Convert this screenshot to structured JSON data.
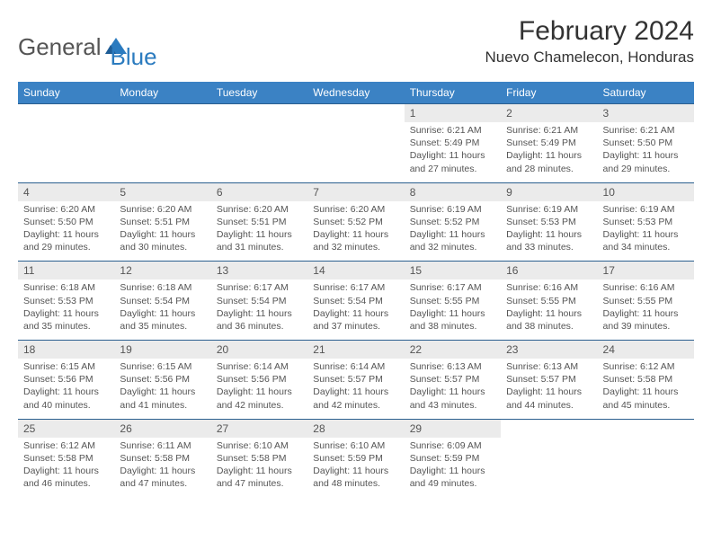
{
  "logo": {
    "general": "General",
    "blue": "Blue"
  },
  "header": {
    "month": "February 2024",
    "location": "Nuevo Chamelecon, Honduras"
  },
  "colors": {
    "header_bg": "#3b82c4",
    "header_text": "#ffffff",
    "daynum_bg": "#ebebeb",
    "border": "#2b5f8f",
    "text": "#555555",
    "logo_blue": "#2b7bbf"
  },
  "weekdays": [
    "Sunday",
    "Monday",
    "Tuesday",
    "Wednesday",
    "Thursday",
    "Friday",
    "Saturday"
  ],
  "weeks": [
    [
      null,
      null,
      null,
      null,
      {
        "n": "1",
        "sr": "Sunrise: 6:21 AM",
        "ss": "Sunset: 5:49 PM",
        "dl": "Daylight: 11 hours and 27 minutes."
      },
      {
        "n": "2",
        "sr": "Sunrise: 6:21 AM",
        "ss": "Sunset: 5:49 PM",
        "dl": "Daylight: 11 hours and 28 minutes."
      },
      {
        "n": "3",
        "sr": "Sunrise: 6:21 AM",
        "ss": "Sunset: 5:50 PM",
        "dl": "Daylight: 11 hours and 29 minutes."
      }
    ],
    [
      {
        "n": "4",
        "sr": "Sunrise: 6:20 AM",
        "ss": "Sunset: 5:50 PM",
        "dl": "Daylight: 11 hours and 29 minutes."
      },
      {
        "n": "5",
        "sr": "Sunrise: 6:20 AM",
        "ss": "Sunset: 5:51 PM",
        "dl": "Daylight: 11 hours and 30 minutes."
      },
      {
        "n": "6",
        "sr": "Sunrise: 6:20 AM",
        "ss": "Sunset: 5:51 PM",
        "dl": "Daylight: 11 hours and 31 minutes."
      },
      {
        "n": "7",
        "sr": "Sunrise: 6:20 AM",
        "ss": "Sunset: 5:52 PM",
        "dl": "Daylight: 11 hours and 32 minutes."
      },
      {
        "n": "8",
        "sr": "Sunrise: 6:19 AM",
        "ss": "Sunset: 5:52 PM",
        "dl": "Daylight: 11 hours and 32 minutes."
      },
      {
        "n": "9",
        "sr": "Sunrise: 6:19 AM",
        "ss": "Sunset: 5:53 PM",
        "dl": "Daylight: 11 hours and 33 minutes."
      },
      {
        "n": "10",
        "sr": "Sunrise: 6:19 AM",
        "ss": "Sunset: 5:53 PM",
        "dl": "Daylight: 11 hours and 34 minutes."
      }
    ],
    [
      {
        "n": "11",
        "sr": "Sunrise: 6:18 AM",
        "ss": "Sunset: 5:53 PM",
        "dl": "Daylight: 11 hours and 35 minutes."
      },
      {
        "n": "12",
        "sr": "Sunrise: 6:18 AM",
        "ss": "Sunset: 5:54 PM",
        "dl": "Daylight: 11 hours and 35 minutes."
      },
      {
        "n": "13",
        "sr": "Sunrise: 6:17 AM",
        "ss": "Sunset: 5:54 PM",
        "dl": "Daylight: 11 hours and 36 minutes."
      },
      {
        "n": "14",
        "sr": "Sunrise: 6:17 AM",
        "ss": "Sunset: 5:54 PM",
        "dl": "Daylight: 11 hours and 37 minutes."
      },
      {
        "n": "15",
        "sr": "Sunrise: 6:17 AM",
        "ss": "Sunset: 5:55 PM",
        "dl": "Daylight: 11 hours and 38 minutes."
      },
      {
        "n": "16",
        "sr": "Sunrise: 6:16 AM",
        "ss": "Sunset: 5:55 PM",
        "dl": "Daylight: 11 hours and 38 minutes."
      },
      {
        "n": "17",
        "sr": "Sunrise: 6:16 AM",
        "ss": "Sunset: 5:55 PM",
        "dl": "Daylight: 11 hours and 39 minutes."
      }
    ],
    [
      {
        "n": "18",
        "sr": "Sunrise: 6:15 AM",
        "ss": "Sunset: 5:56 PM",
        "dl": "Daylight: 11 hours and 40 minutes."
      },
      {
        "n": "19",
        "sr": "Sunrise: 6:15 AM",
        "ss": "Sunset: 5:56 PM",
        "dl": "Daylight: 11 hours and 41 minutes."
      },
      {
        "n": "20",
        "sr": "Sunrise: 6:14 AM",
        "ss": "Sunset: 5:56 PM",
        "dl": "Daylight: 11 hours and 42 minutes."
      },
      {
        "n": "21",
        "sr": "Sunrise: 6:14 AM",
        "ss": "Sunset: 5:57 PM",
        "dl": "Daylight: 11 hours and 42 minutes."
      },
      {
        "n": "22",
        "sr": "Sunrise: 6:13 AM",
        "ss": "Sunset: 5:57 PM",
        "dl": "Daylight: 11 hours and 43 minutes."
      },
      {
        "n": "23",
        "sr": "Sunrise: 6:13 AM",
        "ss": "Sunset: 5:57 PM",
        "dl": "Daylight: 11 hours and 44 minutes."
      },
      {
        "n": "24",
        "sr": "Sunrise: 6:12 AM",
        "ss": "Sunset: 5:58 PM",
        "dl": "Daylight: 11 hours and 45 minutes."
      }
    ],
    [
      {
        "n": "25",
        "sr": "Sunrise: 6:12 AM",
        "ss": "Sunset: 5:58 PM",
        "dl": "Daylight: 11 hours and 46 minutes."
      },
      {
        "n": "26",
        "sr": "Sunrise: 6:11 AM",
        "ss": "Sunset: 5:58 PM",
        "dl": "Daylight: 11 hours and 47 minutes."
      },
      {
        "n": "27",
        "sr": "Sunrise: 6:10 AM",
        "ss": "Sunset: 5:58 PM",
        "dl": "Daylight: 11 hours and 47 minutes."
      },
      {
        "n": "28",
        "sr": "Sunrise: 6:10 AM",
        "ss": "Sunset: 5:59 PM",
        "dl": "Daylight: 11 hours and 48 minutes."
      },
      {
        "n": "29",
        "sr": "Sunrise: 6:09 AM",
        "ss": "Sunset: 5:59 PM",
        "dl": "Daylight: 11 hours and 49 minutes."
      },
      null,
      null
    ]
  ]
}
